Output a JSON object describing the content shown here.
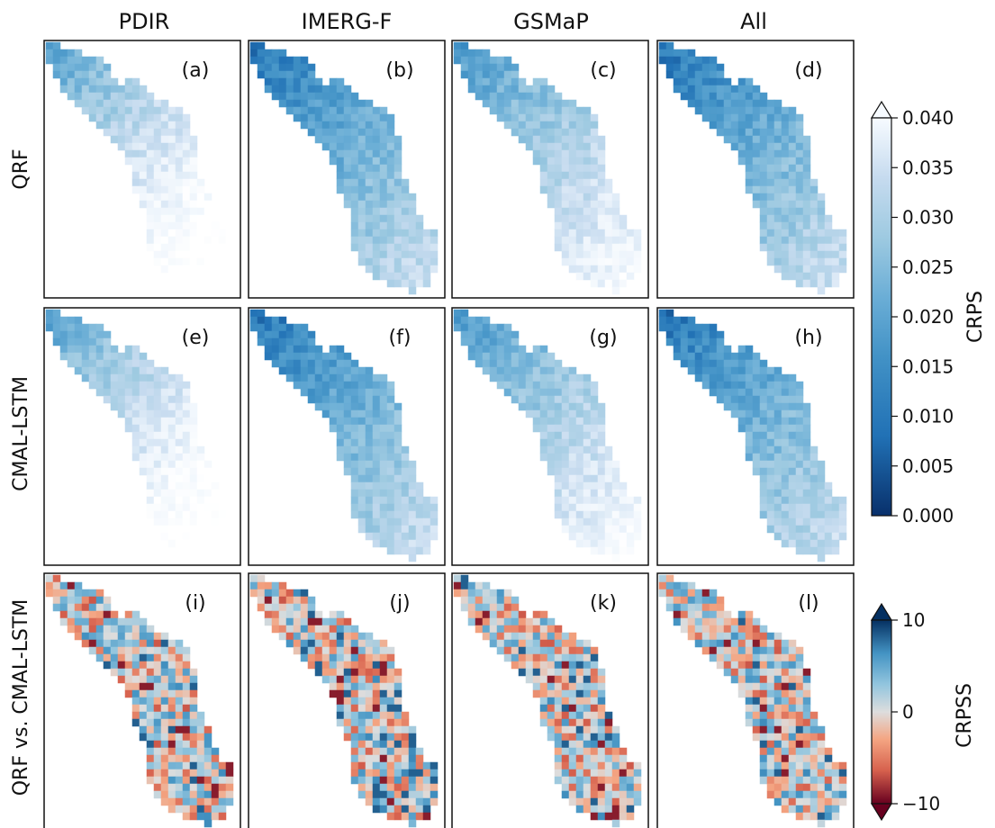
{
  "columns": [
    "PDIR",
    "IMERG-F",
    "GSMaP",
    "All"
  ],
  "rows": [
    "QRF",
    "CMAL-LSTM",
    "QRF vs. CMAL-LSTM"
  ],
  "panels": [
    {
      "label": "(a)",
      "row": 0,
      "col": 0,
      "style": "pale"
    },
    {
      "label": "(b)",
      "row": 0,
      "col": 1,
      "style": "mid"
    },
    {
      "label": "(c)",
      "row": 0,
      "col": 2,
      "style": "light"
    },
    {
      "label": "(d)",
      "row": 0,
      "col": 3,
      "style": "mid"
    },
    {
      "label": "(e)",
      "row": 1,
      "col": 0,
      "style": "pale"
    },
    {
      "label": "(f)",
      "row": 1,
      "col": 1,
      "style": "mid"
    },
    {
      "label": "(g)",
      "row": 1,
      "col": 2,
      "style": "light"
    },
    {
      "label": "(h)",
      "row": 1,
      "col": 3,
      "style": "mid"
    },
    {
      "label": "(i)",
      "row": 2,
      "col": 0,
      "style": "diverge"
    },
    {
      "label": "(j)",
      "row": 2,
      "col": 1,
      "style": "diverge"
    },
    {
      "label": "(k)",
      "row": 2,
      "col": 2,
      "style": "diverge"
    },
    {
      "label": "(l)",
      "row": 2,
      "col": 3,
      "style": "diverge"
    }
  ],
  "colorbar_crps": {
    "label": "CRPS",
    "ticks": [
      "0.000",
      "0.005",
      "0.010",
      "0.015",
      "0.020",
      "0.025",
      "0.030",
      "0.035",
      "0.040"
    ],
    "range": [
      0,
      0.04
    ],
    "extend": "max",
    "colors": [
      "#08306b",
      "#2171b5",
      "#4292c6",
      "#6baed6",
      "#9ecae1",
      "#c6dbef",
      "#eef5fc",
      "#ffffff"
    ]
  },
  "colorbar_crpss": {
    "label": "CRPSS",
    "ticks": [
      "10",
      "0",
      "−10"
    ],
    "range": [
      -10,
      10
    ],
    "extend": "both",
    "colors": [
      "#67001f",
      "#d6604d",
      "#f4a582",
      "#dddddd",
      "#92c5de",
      "#4393c3",
      "#053061"
    ]
  }
}
